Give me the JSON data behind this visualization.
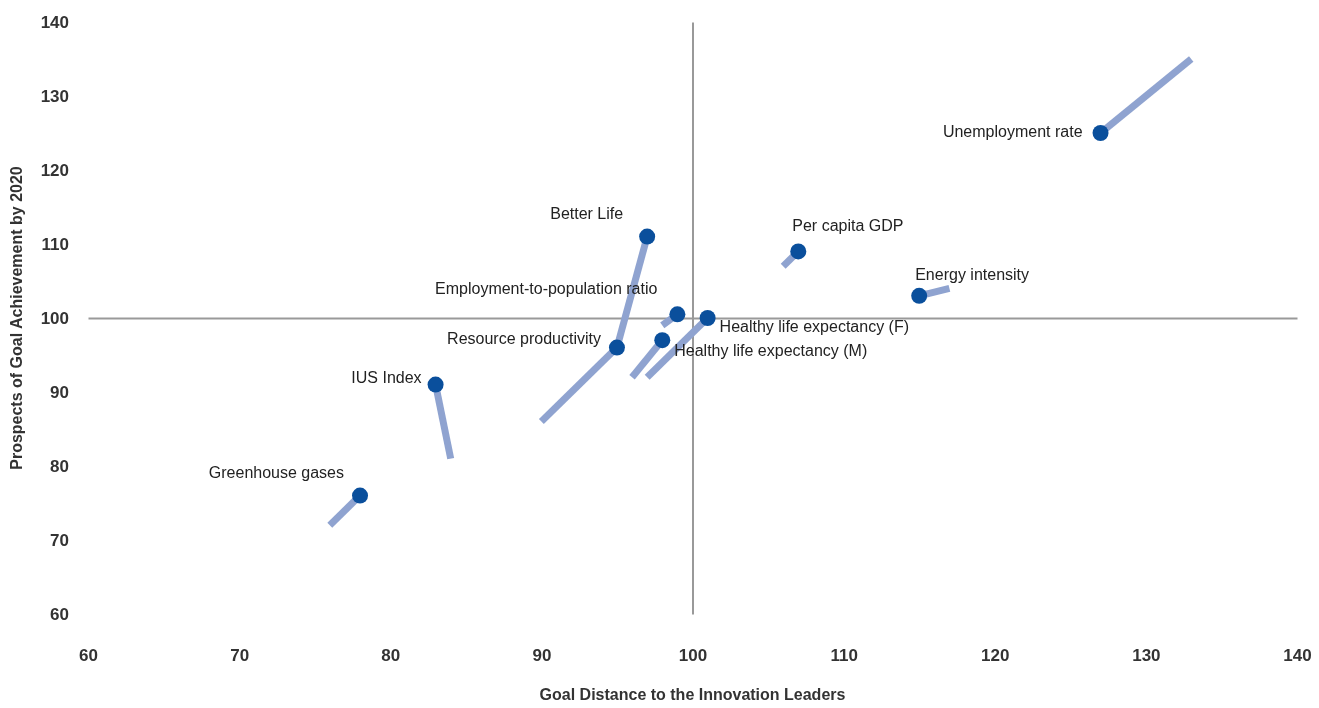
{
  "chart_data": {
    "type": "scatter",
    "xlabel": "Goal Distance to the Innovation Leaders",
    "ylabel": "Prospects of Goal Achievement by 2020",
    "xlim": [
      60,
      140
    ],
    "xticks": [
      60,
      70,
      80,
      90,
      100,
      110,
      120,
      130,
      140
    ],
    "ylim": [
      60,
      140
    ],
    "yticks": [
      60,
      70,
      80,
      90,
      100,
      110,
      120,
      130,
      140
    ],
    "marker": "circle",
    "series": [
      {
        "type": "line",
        "marker": "none",
        "color": "#8fa3d0",
        "x": [
          133,
          127
        ],
        "values": [
          135,
          125
        ]
      },
      {
        "type": "line",
        "marker": "none",
        "color": "#8fa3d0",
        "x": [
          106,
          107
        ],
        "values": [
          107,
          109
        ]
      },
      {
        "type": "line",
        "marker": "none",
        "color": "#8fa3d0",
        "x": [
          117,
          115
        ],
        "values": [
          104,
          103
        ]
      },
      {
        "type": "line",
        "marker": "none",
        "color": "#8fa3d0",
        "x": [
          95,
          97
        ],
        "values": [
          96,
          111
        ]
      },
      {
        "type": "line",
        "marker": "none",
        "color": "#8fa3d0",
        "x": [
          98,
          99
        ],
        "values": [
          99,
          100.5
        ]
      },
      {
        "type": "line",
        "marker": "none",
        "color": "#8fa3d0",
        "x": [
          97,
          101
        ],
        "values": [
          92,
          100
        ]
      },
      {
        "type": "line",
        "marker": "none",
        "color": "#8fa3d0",
        "x": [
          96,
          98
        ],
        "values": [
          92,
          97
        ]
      },
      {
        "type": "line",
        "marker": "none",
        "color": "#8fa3d0",
        "x": [
          90,
          95
        ],
        "values": [
          86,
          96
        ]
      },
      {
        "type": "line",
        "marker": "none",
        "color": "#8fa3d0",
        "x": [
          84,
          83
        ],
        "values": [
          81,
          91
        ]
      },
      {
        "type": "line",
        "marker": "none",
        "color": "#8fa3d0",
        "x": [
          76,
          78
        ],
        "values": [
          72,
          76
        ]
      },
      {
        "color": "#0a4f9c",
        "x": [
          127,
          107,
          115,
          97,
          99,
          101,
          98,
          95,
          83,
          78
        ],
        "values": [
          125,
          109,
          103,
          111,
          100.5,
          100,
          97,
          96,
          91,
          76
        ]
      }
    ],
    "annotations": [
      {
        "text": "Unemployment rate",
        "x": 127,
        "y": 125
      },
      {
        "text": "Per capita GDP",
        "x": 107,
        "y": 109
      },
      {
        "text": "Energy intensity",
        "x": 115,
        "y": 103
      },
      {
        "text": "Better Life",
        "x": 97,
        "y": 111
      },
      {
        "text": "Employment-to-population ratio",
        "x": 99,
        "y": 100.5
      },
      {
        "text": "Healthy life expectancy (F)",
        "x": 101,
        "y": 100
      },
      {
        "text": "Healthy life expectancy (M)",
        "x": 98,
        "y": 97
      },
      {
        "text": "Resource productivity",
        "x": 95,
        "y": 96
      },
      {
        "text": "IUS Index",
        "x": 83,
        "y": 91
      },
      {
        "text": "Greenhouse gases",
        "x": 78,
        "y": 76
      }
    ]
  }
}
